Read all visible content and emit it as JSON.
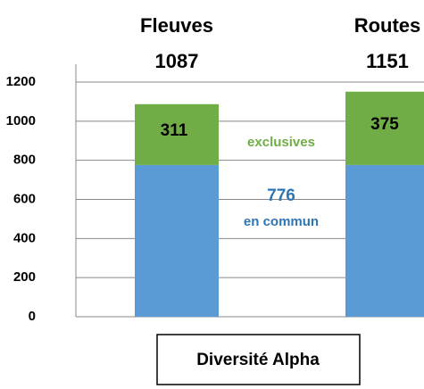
{
  "chart_data": {
    "type": "stacked_bar",
    "categories": [
      "Fleuves",
      "Routes"
    ],
    "totals": [
      1087,
      1151
    ],
    "series": [
      {
        "name": "en commun",
        "color": "#5b9bd5",
        "values": [
          776,
          776
        ]
      },
      {
        "name": "exclusives",
        "color": "#70ad47",
        "values": [
          311,
          375
        ]
      }
    ],
    "ylim": [
      0,
      1200
    ],
    "yticks": [
      0,
      200,
      400,
      600,
      800,
      1000,
      1200
    ],
    "grid": true,
    "annotation": "Diversité Alpha"
  }
}
